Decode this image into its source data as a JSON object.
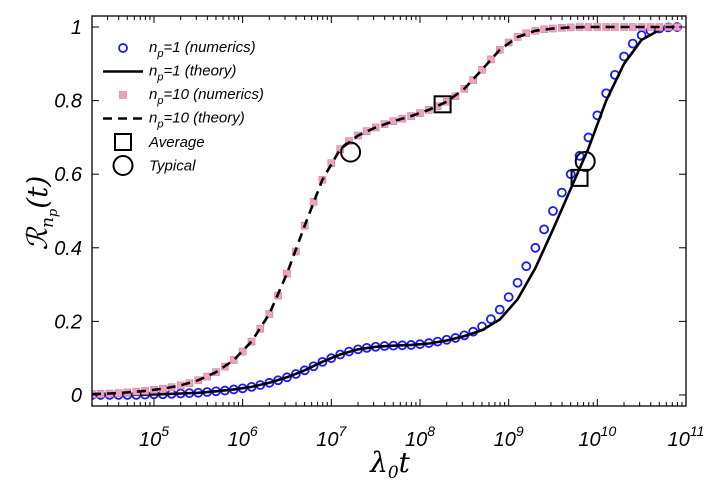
{
  "chart_data": {
    "type": "scatter",
    "title": "",
    "xlabel": {
      "main": "λ",
      "sub": "0",
      "tail": "t"
    },
    "ylabel": {
      "main": "ℛ",
      "sub": "n",
      "subsub": "p",
      "tail": "(t)"
    },
    "x_scale": "log",
    "xlim": [
      20000,
      100000000000
    ],
    "ylim": [
      -0.03,
      1.03
    ],
    "x_ticks": [
      {
        "value": 100000,
        "base": "10",
        "exp": "5"
      },
      {
        "value": 1000000,
        "base": "10",
        "exp": "6"
      },
      {
        "value": 10000000,
        "base": "10",
        "exp": "7"
      },
      {
        "value": 100000000,
        "base": "10",
        "exp": "8"
      },
      {
        "value": 1000000000,
        "base": "10",
        "exp": "9"
      },
      {
        "value": 10000000000,
        "base": "10",
        "exp": "10"
      },
      {
        "value": 100000000000,
        "base": "10",
        "exp": "11"
      }
    ],
    "y_ticks": [
      {
        "value": 0,
        "label": "0"
      },
      {
        "value": 0.2,
        "label": "0.2"
      },
      {
        "value": 0.4,
        "label": "0.4"
      },
      {
        "value": 0.6,
        "label": "0.6"
      },
      {
        "value": 0.8,
        "label": "0.8"
      },
      {
        "value": 1,
        "label": "1"
      }
    ],
    "grid": false,
    "legend_position": "top-left",
    "series": [
      {
        "name": "n_p=1 (numerics)",
        "legend_main": "n",
        "legend_sub": "p",
        "legend_tail": "=1 (numerics)",
        "kind": "markers",
        "marker": "circle",
        "color": "#1a1aff",
        "x": [
          20000,
          25000,
          31600,
          39800,
          50100,
          63100,
          79400,
          100000,
          126000,
          158000,
          200000,
          251000,
          316000,
          398000,
          501000,
          631000,
          794000,
          1000000,
          1260000,
          1580000,
          2000000,
          2510000,
          3160000,
          3980000,
          5010000,
          6310000,
          7940000,
          10000000,
          12600000,
          15800000,
          20000000,
          25100000,
          31600000,
          39800000,
          50100000,
          63100000,
          79400000,
          100000000,
          126000000,
          158000000,
          200000000,
          251000000,
          316000000,
          398000000,
          501000000,
          631000000,
          794000000,
          1000000000,
          1260000000,
          1580000000,
          2000000000,
          2510000000,
          3160000000,
          3980000000,
          5010000000,
          6310000000,
          7940000000,
          10000000000,
          12600000000,
          15800000000,
          20000000000,
          25100000000,
          31600000000,
          39800000000,
          50100000000,
          63100000000,
          79400000000
        ],
        "y": [
          0.0,
          0.0,
          0.0,
          0.0,
          0.0,
          0.0,
          0.001,
          0.002,
          0.002,
          0.003,
          0.004,
          0.005,
          0.006,
          0.008,
          0.01,
          0.012,
          0.015,
          0.018,
          0.022,
          0.027,
          0.033,
          0.04,
          0.048,
          0.057,
          0.067,
          0.078,
          0.09,
          0.1,
          0.11,
          0.118,
          0.124,
          0.128,
          0.131,
          0.133,
          0.134,
          0.135,
          0.136,
          0.138,
          0.141,
          0.145,
          0.15,
          0.155,
          0.162,
          0.172,
          0.186,
          0.206,
          0.232,
          0.266,
          0.305,
          0.35,
          0.4,
          0.45,
          0.5,
          0.55,
          0.6,
          0.65,
          0.7,
          0.76,
          0.82,
          0.87,
          0.92,
          0.955,
          0.978,
          0.99,
          0.996,
          0.999,
          1.0
        ]
      },
      {
        "name": "n_p=1 (theory)",
        "legend_main": "n",
        "legend_sub": "p",
        "legend_tail": "=1 (theory)",
        "kind": "line",
        "dash": "solid",
        "color": "#000000",
        "x": [
          20000,
          31600,
          50100,
          79400,
          126000,
          200000,
          316000,
          501000,
          794000,
          1260000,
          2000000,
          3160000,
          5010000,
          7940000,
          12600000,
          20000000,
          31600000,
          50100000,
          79400000,
          126000000,
          200000000,
          316000000,
          501000000,
          794000000,
          1260000000,
          2000000000,
          3160000000,
          5010000000,
          7940000000,
          12600000000,
          20000000000,
          31600000000,
          50100000000,
          79400000000
        ],
        "y": [
          0.0,
          0.0,
          0.0,
          0.001,
          0.002,
          0.004,
          0.006,
          0.01,
          0.015,
          0.022,
          0.033,
          0.048,
          0.067,
          0.09,
          0.11,
          0.124,
          0.131,
          0.134,
          0.136,
          0.14,
          0.148,
          0.16,
          0.176,
          0.205,
          0.26,
          0.345,
          0.45,
          0.56,
          0.67,
          0.8,
          0.9,
          0.965,
          0.992,
          1.0
        ]
      },
      {
        "name": "n_p=10 (numerics)",
        "legend_main": "n",
        "legend_sub": "p",
        "legend_tail": "=10 (numerics)",
        "kind": "markers",
        "marker": "square",
        "color": "#f0a0c0",
        "x": [
          20000,
          25000,
          31600,
          39800,
          50100,
          63100,
          79400,
          100000,
          126000,
          158000,
          200000,
          251000,
          316000,
          398000,
          501000,
          631000,
          794000,
          1000000,
          1260000,
          1580000,
          2000000,
          2510000,
          3160000,
          3980000,
          5010000,
          6310000,
          7940000,
          10000000,
          12600000,
          15800000,
          20000000,
          25100000,
          31600000,
          39800000,
          50100000,
          63100000,
          79400000,
          100000000,
          126000000,
          158000000,
          200000000,
          251000000,
          316000000,
          398000000,
          501000000,
          631000000,
          794000000,
          1000000000,
          1260000000,
          1580000000,
          2000000000,
          2510000000,
          3160000000,
          3980000000,
          5010000000,
          6310000000,
          7940000000,
          10000000000,
          12600000000,
          15800000000,
          20000000000,
          25100000000,
          31600000000,
          39800000000,
          50100000000,
          63100000000,
          79400000000
        ],
        "y": [
          0.002,
          0.003,
          0.004,
          0.005,
          0.007,
          0.009,
          0.011,
          0.014,
          0.017,
          0.021,
          0.026,
          0.032,
          0.04,
          0.05,
          0.062,
          0.077,
          0.095,
          0.118,
          0.145,
          0.18,
          0.22,
          0.27,
          0.33,
          0.39,
          0.46,
          0.525,
          0.585,
          0.63,
          0.668,
          0.69,
          0.705,
          0.717,
          0.727,
          0.736,
          0.744,
          0.751,
          0.758,
          0.766,
          0.775,
          0.785,
          0.797,
          0.812,
          0.832,
          0.856,
          0.884,
          0.912,
          0.938,
          0.958,
          0.973,
          0.983,
          0.99,
          0.994,
          0.996,
          0.998,
          0.999,
          1.0,
          1.0,
          1.0,
          1.0,
          1.0,
          1.0,
          1.0,
          1.0,
          1.0,
          1.0,
          1.0,
          1.0
        ]
      },
      {
        "name": "n_p=10 (theory)",
        "legend_main": "n",
        "legend_sub": "p",
        "legend_tail": "=10 (theory)",
        "kind": "line",
        "dash": "dashed",
        "color": "#000000",
        "x": [
          20000,
          31600,
          50100,
          79400,
          126000,
          200000,
          316000,
          501000,
          794000,
          1260000,
          2000000,
          3160000,
          5010000,
          7940000,
          12600000,
          20000000,
          31600000,
          50100000,
          79400000,
          126000000,
          200000000,
          316000000,
          501000000,
          794000000,
          1260000000,
          2000000000,
          3160000000,
          5010000000,
          7940000000,
          12600000000,
          20000000000,
          31600000000,
          50100000000,
          79400000000
        ],
        "y": [
          0.002,
          0.004,
          0.007,
          0.011,
          0.017,
          0.026,
          0.04,
          0.062,
          0.095,
          0.145,
          0.22,
          0.33,
          0.46,
          0.585,
          0.668,
          0.705,
          0.727,
          0.744,
          0.758,
          0.775,
          0.797,
          0.832,
          0.884,
          0.938,
          0.973,
          0.99,
          0.996,
          0.999,
          1.0,
          1.0,
          1.0,
          1.0,
          1.0,
          1.0
        ]
      }
    ],
    "annotations": [
      {
        "name": "Average",
        "marker": "open-square",
        "x": 180000000,
        "y": 0.79
      },
      {
        "name": "Typical",
        "marker": "open-circle",
        "x": 16500000,
        "y": 0.66
      },
      {
        "name": "Average",
        "marker": "open-square",
        "x": 6300000000,
        "y": 0.59
      },
      {
        "name": "Typical",
        "marker": "open-circle",
        "x": 7300000000,
        "y": 0.635
      }
    ],
    "legend_extra": [
      {
        "label": "Average",
        "marker": "open-square"
      },
      {
        "label": "Typical",
        "marker": "open-circle"
      }
    ]
  }
}
